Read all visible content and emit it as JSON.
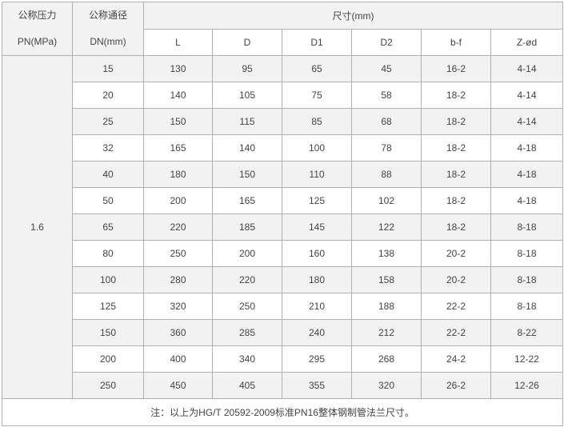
{
  "header": {
    "pn_label": "公称压力",
    "pn_unit": "PN(MPa)",
    "dn_label": "公称通径",
    "dn_unit": "DN(mm)",
    "dims_label": "尺寸(mm)",
    "columns": [
      "L",
      "D",
      "D1",
      "D2",
      "b-f",
      "Z-ød"
    ]
  },
  "pressure": "1.6",
  "rows": [
    [
      "15",
      "130",
      "95",
      "65",
      "45",
      "16-2",
      "4-14"
    ],
    [
      "20",
      "140",
      "105",
      "75",
      "58",
      "18-2",
      "4-14"
    ],
    [
      "25",
      "150",
      "115",
      "85",
      "68",
      "18-2",
      "4-14"
    ],
    [
      "32",
      "165",
      "140",
      "100",
      "78",
      "18-2",
      "4-18"
    ],
    [
      "40",
      "180",
      "150",
      "110",
      "88",
      "18-2",
      "4-18"
    ],
    [
      "50",
      "200",
      "165",
      "125",
      "102",
      "18-2",
      "4-18"
    ],
    [
      "65",
      "220",
      "185",
      "145",
      "122",
      "18-2",
      "8-18"
    ],
    [
      "80",
      "250",
      "200",
      "160",
      "138",
      "20-2",
      "8-18"
    ],
    [
      "100",
      "280",
      "220",
      "180",
      "158",
      "20-2",
      "8-18"
    ],
    [
      "125",
      "320",
      "250",
      "210",
      "188",
      "22-2",
      "8-18"
    ],
    [
      "150",
      "360",
      "285",
      "240",
      "212",
      "22-2",
      "8-22"
    ],
    [
      "200",
      "400",
      "340",
      "295",
      "268",
      "24-2",
      "12-22"
    ],
    [
      "250",
      "450",
      "405",
      "355",
      "320",
      "26-2",
      "12-26"
    ]
  ],
  "note": "注：以上为HG/T 20592-2009标准PN16整体钢制管法兰尺寸。"
}
